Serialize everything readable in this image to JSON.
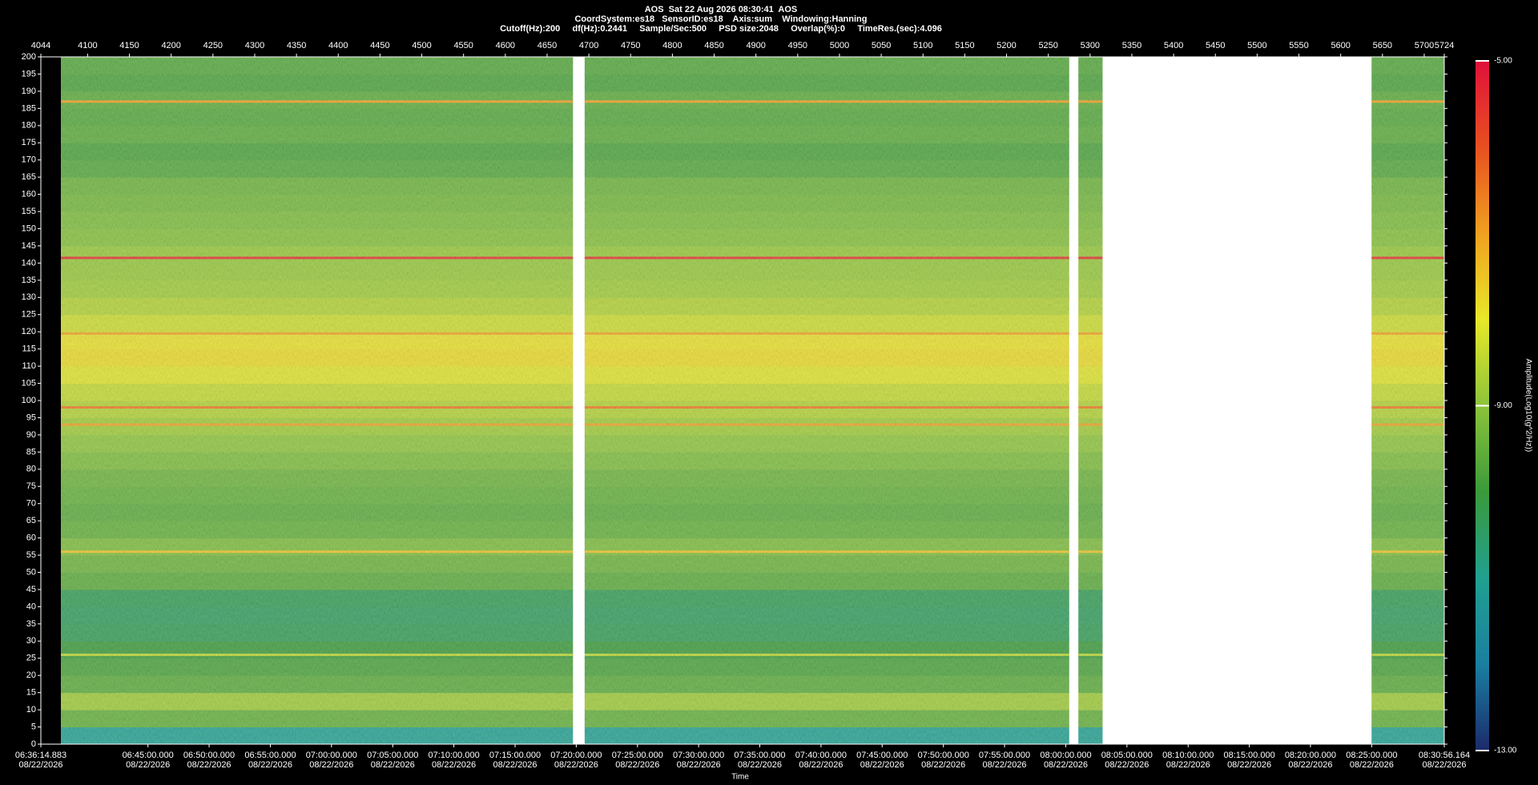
{
  "chart_data": {
    "type": "spectrogram",
    "title": "AOS  Sat 22 Aug 2026 08:30:41  AOS",
    "subtitle": "CoordSystem:es18   SensorID:es18    Axis:sum    Windowing:Hanning",
    "params": "Cutoff(Hz):200     df(Hz):0.2441     Sample/Sec:500     PSD size:2048     Overlap(%):0     TimeRes.(sec):4.096",
    "xlabel": "Time",
    "colorbar_label": "Amplitude(Log10(g^2/Hz))",
    "xlim": [
      4044,
      5724
    ],
    "xticks": [
      4044,
      4100,
      4150,
      4200,
      4250,
      4300,
      4350,
      4400,
      4450,
      4500,
      4550,
      4600,
      4650,
      4700,
      4750,
      4800,
      4850,
      4900,
      4950,
      5000,
      5050,
      5100,
      5150,
      5200,
      5250,
      5300,
      5350,
      5400,
      5450,
      5500,
      5550,
      5600,
      5650,
      5700,
      5724
    ],
    "time_ticks": [
      {
        "value": 4044,
        "label": "06:36:14.883"
      },
      {
        "value": 4172.2,
        "label": "06:45:00.000"
      },
      {
        "value": 4245.4,
        "label": "06:50:00.000"
      },
      {
        "value": 4318.7,
        "label": "06:55:00.000"
      },
      {
        "value": 4391.9,
        "label": "07:00:00.000"
      },
      {
        "value": 4465.2,
        "label": "07:05:00.000"
      },
      {
        "value": 4538.4,
        "label": "07:10:00.000"
      },
      {
        "value": 4611.7,
        "label": "07:15:00.000"
      },
      {
        "value": 4684.9,
        "label": "07:20:00.000"
      },
      {
        "value": 4758.2,
        "label": "07:25:00.000"
      },
      {
        "value": 4831.4,
        "label": "07:30:00.000"
      },
      {
        "value": 4904.6,
        "label": "07:35:00.000"
      },
      {
        "value": 4977.9,
        "label": "07:40:00.000"
      },
      {
        "value": 5051.1,
        "label": "07:45:00.000"
      },
      {
        "value": 5124.4,
        "label": "07:50:00.000"
      },
      {
        "value": 5197.6,
        "label": "07:55:00.000"
      },
      {
        "value": 5270.9,
        "label": "08:00:00.000"
      },
      {
        "value": 5344.1,
        "label": "08:05:00.000"
      },
      {
        "value": 5417.4,
        "label": "08:10:00.000"
      },
      {
        "value": 5490.6,
        "label": "08:15:00.000"
      },
      {
        "value": 5563.8,
        "label": "08:20:00.000"
      },
      {
        "value": 5637.1,
        "label": "08:25:00.000"
      },
      {
        "value": 5724,
        "label": "08:30:56.164"
      }
    ],
    "time_dates": [
      "08/22/2026",
      "08/22/2026",
      "08/22/2026",
      "08/22/2026",
      "08/22/2026",
      "08/22/2026",
      "08/22/2026",
      "08/22/2026",
      "08/22/2026",
      "08/22/2026",
      "08/22/2026",
      "08/22/2026",
      "08/22/2026",
      "08/22/2026",
      "08/22/2026",
      "08/22/2026",
      "08/22/2026",
      "08/22/2026",
      "08/22/2026",
      "08/22/2026",
      "08/22/2026",
      "08/22/2026",
      "08/22/2026"
    ],
    "ylim": [
      0,
      200
    ],
    "yticks": [
      0,
      5,
      10,
      15,
      20,
      25,
      30,
      35,
      40,
      45,
      50,
      55,
      60,
      65,
      70,
      75,
      80,
      85,
      90,
      95,
      100,
      105,
      110,
      115,
      120,
      125,
      130,
      135,
      140,
      145,
      150,
      155,
      160,
      165,
      170,
      175,
      180,
      185,
      190,
      195,
      200
    ],
    "segments": [
      [
        4068,
        4681
      ],
      [
        4695,
        5275
      ],
      [
        5286,
        5315
      ],
      [
        5637,
        5724
      ]
    ],
    "freq_bins": [
      0,
      5,
      10,
      15,
      20,
      25,
      30,
      35,
      40,
      45,
      50,
      55,
      60,
      65,
      70,
      75,
      80,
      85,
      90,
      95,
      100,
      105,
      110,
      115,
      120,
      125,
      130,
      135,
      140,
      145,
      150,
      155,
      160,
      165,
      170,
      175,
      180,
      185,
      190,
      195,
      200
    ],
    "z": [
      -11,
      -9.5,
      -8.8,
      -9.6,
      -9.8,
      -10,
      -10.3,
      -10.4,
      -10.3,
      -9.6,
      -9.4,
      -9.2,
      -9.5,
      -9.6,
      -9.5,
      -9.4,
      -9.2,
      -9,
      -8.8,
      -8.6,
      -8.4,
      -8.1,
      -7.8,
      -7.9,
      -8.3,
      -8.6,
      -8.8,
      -8.9,
      -8.9,
      -9.1,
      -9.2,
      -9.3,
      -9.4,
      -9.7,
      -9.8,
      -9.6,
      -9.7,
      -9.6,
      -9.8,
      -9.7
    ],
    "lines": [
      {
        "freq": 141.5,
        "value": -5.5
      },
      {
        "freq": 98,
        "value": -6.5
      },
      {
        "freq": 93,
        "value": -7
      },
      {
        "freq": 119.5,
        "value": -7
      },
      {
        "freq": 187,
        "value": -7
      },
      {
        "freq": 56,
        "value": -7.5
      },
      {
        "freq": 26,
        "value": -8.5
      }
    ],
    "clim": [
      -13,
      -5
    ],
    "cticks": [
      {
        "value": -5,
        "label": "-5.00"
      },
      {
        "value": -9,
        "label": "-9.00"
      },
      {
        "value": -13,
        "label": "-13.00"
      }
    ],
    "colormap": [
      "#1b2a6b",
      "#1a7fa0",
      "#20a090",
      "#3a9a3a",
      "#8cc43a",
      "#e8e828",
      "#f0a020",
      "#e85020",
      "#e0103a"
    ]
  }
}
